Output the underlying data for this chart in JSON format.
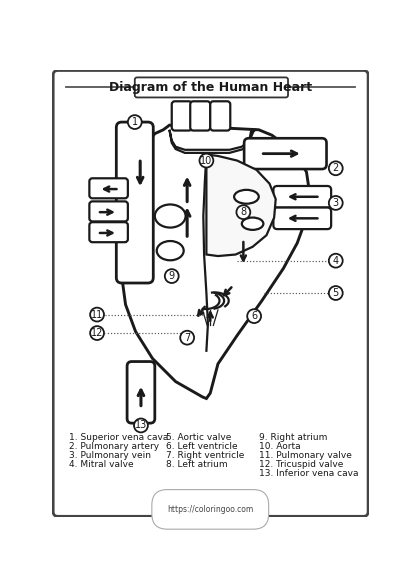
{
  "title": "Diagram of the Human Heart",
  "bg_color": "#ffffff",
  "line_color": "#1a1a1a",
  "label_color": "#1a1a1a",
  "website": "https://coloringoo.com",
  "legend_col1": [
    "1. Superior vena cava",
    "2. Pulmonary artery",
    "3. Pulmonary vein",
    "4. Mitral valve"
  ],
  "legend_col2": [
    "5. Aortic valve",
    "6. Left ventricle",
    "7. Right ventricle",
    "8. Left atrium"
  ],
  "legend_col3": [
    "9. Right atrium",
    "10. Aorta",
    "11. Pulmonary valve",
    "12. Tricuspid valve",
    "13. Inferior vena cava"
  ]
}
